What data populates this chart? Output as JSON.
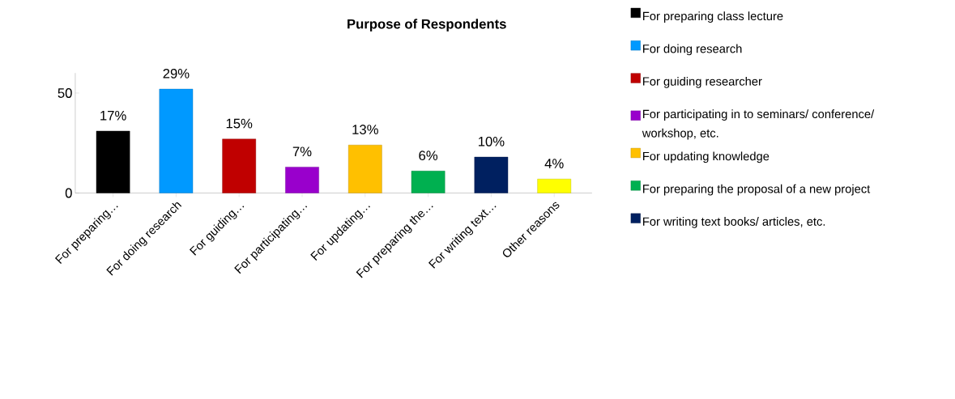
{
  "chart_data": {
    "type": "bar",
    "title": "Purpose of Respondents",
    "categories": [
      "For preparing…",
      "For doing research",
      "For guiding…",
      "For participating…",
      "For updating…",
      "For preparing the…",
      "For writing text…",
      "Other reasons"
    ],
    "series": [
      {
        "name": "For preparing class lecture",
        "color": "#000000",
        "values": [
          31,
          null,
          null,
          null,
          null,
          null,
          null,
          null
        ]
      },
      {
        "name": "For doing research",
        "color": "#0099ff",
        "values": [
          null,
          52,
          null,
          null,
          null,
          null,
          null,
          null
        ]
      },
      {
        "name": "For guiding  researcher",
        "color": "#c00000",
        "values": [
          null,
          null,
          27,
          null,
          null,
          null,
          null,
          null
        ]
      },
      {
        "name": "For participating in to seminars/ conference/ workshop, etc.",
        "color": "#9900cc",
        "values": [
          null,
          null,
          null,
          13,
          null,
          null,
          null,
          null
        ]
      },
      {
        "name": "For updating knowledge",
        "color": "#ffc000",
        "values": [
          null,
          null,
          null,
          null,
          24,
          null,
          null,
          null
        ]
      },
      {
        "name": "For preparing the proposal of a new project",
        "color": "#00b050",
        "values": [
          null,
          null,
          null,
          null,
          null,
          11,
          null,
          null
        ]
      },
      {
        "name": "For writing text books/ articles, etc.",
        "color": "#002060",
        "values": [
          null,
          null,
          null,
          null,
          null,
          null,
          18,
          null
        ]
      },
      {
        "color": "#ffff00",
        "values": [
          null,
          null,
          null,
          null,
          null,
          null,
          null,
          7
        ]
      }
    ],
    "annotations": [
      {
        "text": "17%",
        "x": "For preparing…",
        "y": 31
      },
      {
        "text": "29%",
        "x": "For doing research",
        "y": 52
      },
      {
        "text": "15%",
        "x": "For guiding…",
        "y": 27
      },
      {
        "text": "7%",
        "x": "For participating…",
        "y": 13
      },
      {
        "text": "13%",
        "x": "For updating…",
        "y": 24
      },
      {
        "text": "6%",
        "x": "For preparing the…",
        "y": 11
      },
      {
        "text": "10%",
        "x": "For writing text…",
        "y": 18
      },
      {
        "text": "4%",
        "x": "Other reasons",
        "y": 7
      }
    ],
    "ylim": [
      0,
      60
    ],
    "yticks": [
      0,
      50
    ],
    "legend": "right",
    "grid": false
  }
}
